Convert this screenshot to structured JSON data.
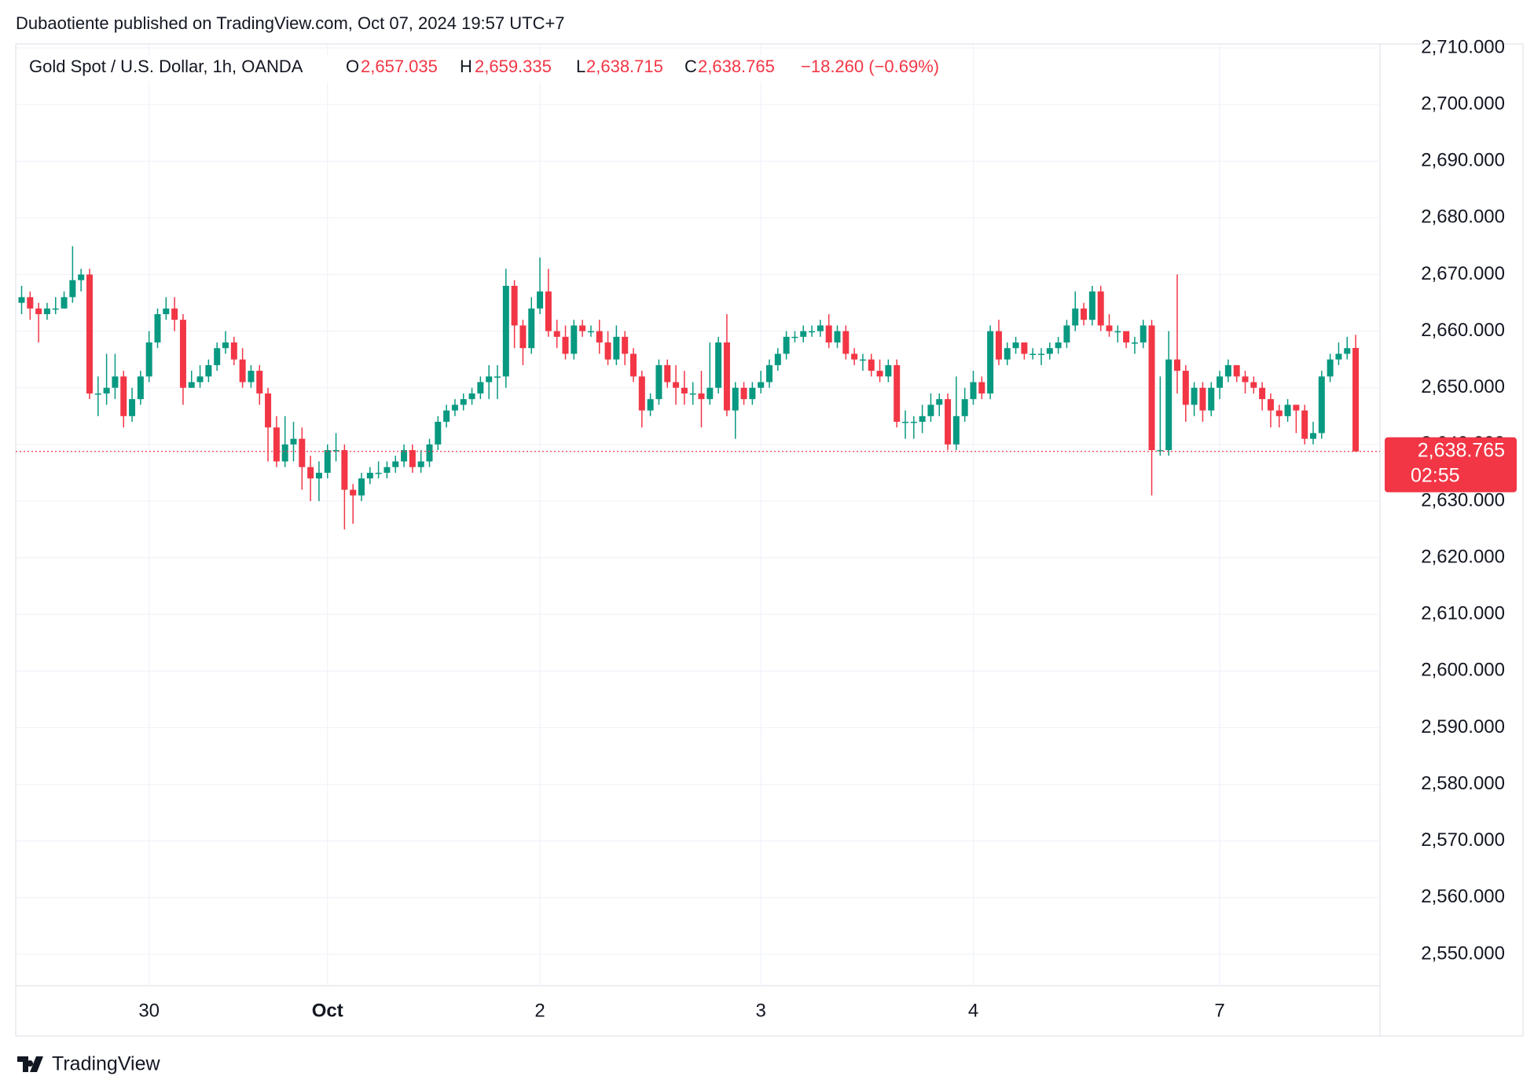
{
  "header": {
    "attribution": "Dubaotiente published on TradingView.com, Oct 07, 2024 19:57 UTC+7"
  },
  "legend": {
    "symbol": "Gold Spot / U.S. Dollar, 1h, OANDA",
    "o_key": "O",
    "o_value": "2,657.035",
    "h_key": "H",
    "h_value": "2,659.335",
    "l_key": "L",
    "l_value": "2,638.715",
    "c_key": "C",
    "c_value": "2,638.765",
    "change": "−18.260 (−0.69%)"
  },
  "footer": {
    "brand": "TradingView"
  },
  "chart_data": {
    "type": "candlestick",
    "up_color": "#089981",
    "down_color": "#f23645",
    "grid": true,
    "ylim": [
      2550,
      2710
    ],
    "yticks": [
      {
        "value": 2550,
        "label": "2,550.000"
      },
      {
        "value": 2560,
        "label": "2,560.000"
      },
      {
        "value": 2570,
        "label": "2,570.000"
      },
      {
        "value": 2580,
        "label": "2,580.000"
      },
      {
        "value": 2590,
        "label": "2,590.000"
      },
      {
        "value": 2600,
        "label": "2,600.000"
      },
      {
        "value": 2610,
        "label": "2,610.000"
      },
      {
        "value": 2620,
        "label": "2,620.000"
      },
      {
        "value": 2630,
        "label": "2,630.000"
      },
      {
        "value": 2640,
        "label": "2,640.000"
      },
      {
        "value": 2650,
        "label": "2,650.000"
      },
      {
        "value": 2660,
        "label": "2,660.000"
      },
      {
        "value": 2670,
        "label": "2,670.000"
      },
      {
        "value": 2680,
        "label": "2,680.000"
      },
      {
        "value": 2690,
        "label": "2,690.000"
      },
      {
        "value": 2700,
        "label": "2,700.000"
      },
      {
        "value": 2710,
        "label": "2,710.000"
      }
    ],
    "price_tag": {
      "label": "2,638.765",
      "countdown": "02:55"
    },
    "categories": [
      null,
      null,
      null,
      null,
      null,
      null,
      null,
      null,
      null,
      null,
      null,
      null,
      null,
      null,
      null,
      "30",
      null,
      null,
      null,
      null,
      null,
      null,
      null,
      null,
      null,
      null,
      null,
      null,
      null,
      null,
      null,
      null,
      null,
      null,
      null,
      null,
      "Oct",
      null,
      null,
      null,
      null,
      null,
      null,
      null,
      null,
      null,
      null,
      null,
      null,
      null,
      null,
      null,
      null,
      null,
      null,
      null,
      null,
      null,
      null,
      null,
      null,
      "2",
      null,
      null,
      null,
      null,
      null,
      null,
      null,
      null,
      null,
      null,
      null,
      null,
      null,
      null,
      null,
      null,
      null,
      null,
      null,
      null,
      null,
      null,
      null,
      null,
      null,
      "3",
      null,
      null,
      null,
      null,
      null,
      null,
      null,
      null,
      null,
      null,
      null,
      null,
      null,
      null,
      null,
      null,
      null,
      null,
      null,
      null,
      null,
      null,
      null,
      null,
      "4",
      null,
      null,
      null,
      null,
      null,
      null,
      null,
      null,
      null,
      null,
      null,
      null,
      null,
      null,
      null,
      null,
      null,
      null,
      null,
      null,
      null,
      null,
      null,
      null,
      null,
      null,
      null,
      null,
      "7",
      null,
      null,
      null,
      null,
      null,
      null,
      null,
      null,
      null,
      null,
      null,
      null,
      null,
      null,
      null,
      null
    ],
    "open": [
      2665,
      2666,
      2664,
      2663,
      2664,
      2664,
      2666,
      2669,
      2670,
      2649,
      2649,
      2650,
      2652,
      2645,
      2648,
      2652,
      2658,
      2663,
      2664,
      2662,
      2650,
      2651,
      2652,
      2654,
      2657,
      2658,
      2655,
      2651,
      2653,
      2649,
      2643,
      2637,
      2640,
      2641,
      2636,
      2634,
      2635,
      2639,
      2639,
      2632,
      2631,
      2634,
      2635,
      2635,
      2636,
      2637,
      2639,
      2636,
      2637,
      2640,
      2644,
      2646,
      2647,
      2648,
      2649,
      2651,
      2652,
      2652,
      2668,
      2661,
      2657,
      2664,
      2667,
      2660,
      2659,
      2656,
      2661,
      2660,
      2660,
      2658,
      2655,
      2659,
      2656,
      2652,
      2646,
      2648,
      2654,
      2651,
      2650,
      2649,
      2649,
      2648,
      2650,
      2658,
      2646,
      2650,
      2648,
      2650,
      2651,
      2654,
      2656,
      2659,
      2659,
      2660,
      2660,
      2661,
      2658,
      2660,
      2656,
      2655,
      2655,
      2653,
      2652,
      2654,
      2644,
      2644,
      2644,
      2645,
      2647,
      2648,
      2640,
      2645,
      2648,
      2651,
      2649,
      2660,
      2655,
      2657,
      2658,
      2656,
      2656,
      2656,
      2657,
      2658,
      2661,
      2664,
      2662,
      2667,
      2661,
      2660,
      2660,
      2658,
      2658,
      2661,
      2639,
      2639,
      2655,
      2653,
      2647,
      2650,
      2646,
      2650,
      2652,
      2654,
      2652,
      2651,
      2650,
      2648,
      2646,
      2645,
      2647,
      2646,
      2641,
      2642,
      2652,
      2655,
      2656,
      2657.035
    ],
    "high": [
      2668,
      2667,
      2665,
      2665,
      2666,
      2667,
      2675,
      2671,
      2671,
      2652,
      2656,
      2656,
      2653,
      2650,
      2653,
      2660,
      2664,
      2666,
      2666,
      2663,
      2653,
      2654,
      2655,
      2658,
      2660,
      2659,
      2657,
      2654,
      2654,
      2650,
      2645,
      2645,
      2644,
      2643,
      2638,
      2637,
      2640,
      2642,
      2640,
      2633,
      2635,
      2636,
      2637,
      2637,
      2638,
      2640,
      2640,
      2639,
      2641,
      2645,
      2647,
      2648,
      2649,
      2650,
      2652,
      2654,
      2654,
      2671,
      2669,
      2662,
      2666,
      2673,
      2671,
      2662,
      2661,
      2662,
      2662,
      2661,
      2662,
      2660,
      2661,
      2660,
      2657,
      2653,
      2649,
      2655,
      2655,
      2654,
      2653,
      2651,
      2653,
      2658,
      2659,
      2663,
      2651,
      2651,
      2651,
      2653,
      2655,
      2657,
      2660,
      2660,
      2661,
      2661,
      2662,
      2663,
      2661,
      2661,
      2657,
      2656,
      2656,
      2655,
      2655,
      2655,
      2646,
      2645,
      2647,
      2649,
      2649,
      2649,
      2652,
      2650,
      2653,
      2652,
      2661,
      2662,
      2658,
      2659,
      2658,
      2657,
      2657,
      2658,
      2659,
      2662,
      2667,
      2665,
      2668,
      2668,
      2663,
      2661,
      2659,
      2659,
      2662,
      2662,
      2652,
      2660,
      2670,
      2654,
      2651,
      2651,
      2651,
      2653,
      2655,
      2654,
      2653,
      2652,
      2651,
      2649,
      2647,
      2648,
      2647,
      2647,
      2644,
      2653,
      2656,
      2658,
      2659,
      2659.335
    ],
    "low": [
      2663,
      2662,
      2658,
      2662,
      2663,
      2664,
      2665,
      2667,
      2648,
      2645,
      2647,
      2648,
      2643,
      2644,
      2647,
      2651,
      2657,
      2662,
      2660,
      2647,
      2650,
      2650,
      2651,
      2653,
      2656,
      2654,
      2650,
      2650,
      2647,
      2637,
      2636,
      2636,
      2637,
      2632,
      2630,
      2630,
      2634,
      2637,
      2625,
      2626,
      2630,
      2633,
      2634,
      2634,
      2635,
      2636,
      2635,
      2635,
      2636,
      2639,
      2643,
      2645,
      2646,
      2647,
      2648,
      2648,
      2648,
      2650,
      2657,
      2654,
      2656,
      2663,
      2659,
      2657,
      2655,
      2655,
      2659,
      2659,
      2656,
      2654,
      2654,
      2654,
      2651,
      2643,
      2645,
      2647,
      2650,
      2647,
      2647,
      2647,
      2643,
      2647,
      2649,
      2645,
      2641,
      2647,
      2647,
      2649,
      2650,
      2653,
      2655,
      2658,
      2658,
      2659,
      2659,
      2657,
      2657,
      2655,
      2654,
      2653,
      2652,
      2651,
      2651,
      2643,
      2641,
      2641,
      2642,
      2644,
      2645,
      2639,
      2639,
      2644,
      2647,
      2648,
      2648,
      2654,
      2654,
      2656,
      2655,
      2655,
      2654,
      2655,
      2656,
      2657,
      2660,
      2661,
      2661,
      2660,
      2659,
      2658,
      2657,
      2656,
      2657,
      2631,
      2638,
      2638,
      2649,
      2644,
      2645,
      2644,
      2645,
      2648,
      2651,
      2651,
      2649,
      2649,
      2646,
      2643,
      2643,
      2644,
      2642,
      2640,
      2640,
      2641,
      2651,
      2654,
      2655,
      2638.715
    ],
    "close": [
      2666,
      2664,
      2663,
      2664,
      2664,
      2666,
      2669,
      2670,
      2649,
      2649,
      2650,
      2652,
      2645,
      2648,
      2652,
      2658,
      2663,
      2664,
      2662,
      2650,
      2651,
      2652,
      2654,
      2657,
      2658,
      2655,
      2651,
      2653,
      2649,
      2643,
      2637,
      2640,
      2641,
      2636,
      2634,
      2635,
      2639,
      2639,
      2632,
      2631,
      2634,
      2635,
      2635,
      2636,
      2637,
      2639,
      2636,
      2637,
      2640,
      2644,
      2646,
      2647,
      2648,
      2649,
      2651,
      2652,
      2652,
      2668,
      2661,
      2657,
      2664,
      2667,
      2660,
      2659,
      2656,
      2661,
      2660,
      2660,
      2658,
      2655,
      2659,
      2656,
      2652,
      2646,
      2648,
      2654,
      2651,
      2650,
      2649,
      2649,
      2648,
      2650,
      2658,
      2646,
      2650,
      2648,
      2650,
      2651,
      2654,
      2656,
      2659,
      2659,
      2660,
      2660,
      2661,
      2658,
      2660,
      2656,
      2655,
      2655,
      2653,
      2652,
      2654,
      2644,
      2644,
      2644,
      2645,
      2647,
      2648,
      2640,
      2645,
      2648,
      2651,
      2649,
      2660,
      2655,
      2657,
      2658,
      2656,
      2656,
      2656,
      2657,
      2658,
      2661,
      2664,
      2662,
      2667,
      2661,
      2660,
      2660,
      2658,
      2658,
      2661,
      2639,
      2639,
      2655,
      2653,
      2647,
      2650,
      2646,
      2650,
      2652,
      2654,
      2652,
      2651,
      2650,
      2648,
      2646,
      2645,
      2647,
      2646,
      2641,
      2642,
      2652,
      2655,
      2656,
      2657,
      2638.765
    ]
  }
}
